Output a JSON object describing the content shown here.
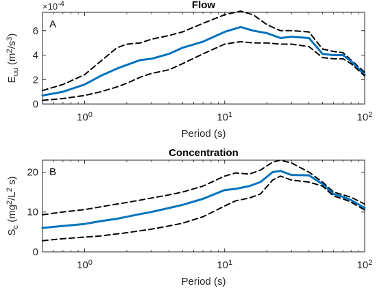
{
  "chart_data": [
    {
      "type": "line",
      "title": "Flow",
      "panel_label": "A",
      "xlabel": "Period (s)",
      "ylabel": "E_uu (m^2/s^3)",
      "y_multiplier": "×10^-4",
      "x_scale": "log",
      "xlim": [
        0.5,
        100
      ],
      "ylim": [
        0,
        7.5
      ],
      "x_ticks": [
        1,
        10,
        100
      ],
      "x_tick_labels": [
        "10^0",
        "10^1",
        "10^2"
      ],
      "y_ticks": [
        0,
        2,
        4,
        6
      ],
      "y_tick_labels": [
        "0",
        "2",
        "4",
        "6"
      ],
      "grid": false,
      "series": [
        {
          "style": "dashed",
          "color": "#000000",
          "x": [
            0.5,
            0.7,
            1.0,
            1.3,
            1.7,
            2.0,
            2.5,
            3.0,
            4.0,
            5.0,
            7.0,
            10.0,
            13.0,
            16.0,
            20.0,
            25.0,
            30.0,
            40.0,
            50.0,
            60.0,
            70.0,
            80.0,
            100.0
          ],
          "values": [
            1.1,
            1.6,
            2.4,
            3.5,
            4.6,
            4.9,
            5.0,
            5.3,
            5.6,
            5.9,
            6.6,
            7.3,
            7.6,
            7.3,
            6.5,
            6.0,
            6.0,
            5.9,
            4.5,
            4.3,
            4.2,
            3.6,
            2.6
          ]
        },
        {
          "style": "solid",
          "color": "#0072BD",
          "x": [
            0.5,
            0.7,
            1.0,
            1.3,
            1.7,
            2.0,
            2.5,
            3.0,
            4.0,
            5.0,
            7.0,
            10.0,
            13.0,
            16.0,
            20.0,
            25.0,
            30.0,
            40.0,
            50.0,
            60.0,
            70.0,
            80.0,
            100.0
          ],
          "values": [
            0.7,
            1.0,
            1.6,
            2.3,
            2.9,
            3.2,
            3.6,
            3.7,
            4.1,
            4.6,
            5.1,
            5.9,
            6.3,
            6.0,
            5.8,
            5.4,
            5.5,
            5.4,
            4.1,
            4.0,
            4.0,
            3.5,
            2.4
          ]
        },
        {
          "style": "dashed",
          "color": "#000000",
          "x": [
            0.5,
            0.7,
            1.0,
            1.3,
            1.7,
            2.0,
            2.5,
            3.0,
            4.0,
            5.0,
            7.0,
            10.0,
            13.0,
            16.0,
            20.0,
            25.0,
            30.0,
            40.0,
            50.0,
            60.0,
            70.0,
            80.0,
            100.0
          ],
          "values": [
            0.3,
            0.45,
            0.7,
            1.0,
            1.4,
            1.7,
            2.2,
            2.5,
            2.8,
            3.3,
            4.1,
            4.9,
            5.1,
            5.0,
            5.0,
            4.9,
            4.9,
            4.7,
            3.8,
            3.7,
            3.7,
            3.3,
            2.3
          ]
        }
      ]
    },
    {
      "type": "line",
      "title": "Concentration",
      "panel_label": "B",
      "xlabel": "Period (s)",
      "ylabel": "S_c (mg^2/L^2 s)",
      "x_scale": "log",
      "xlim": [
        0.5,
        100
      ],
      "ylim": [
        0,
        23
      ],
      "x_ticks": [
        1,
        10,
        100
      ],
      "x_tick_labels": [
        "10^0",
        "10^1",
        "10^2"
      ],
      "y_ticks": [
        0,
        10,
        20
      ],
      "y_tick_labels": [
        "0",
        "10",
        "20"
      ],
      "grid": false,
      "series": [
        {
          "style": "dashed",
          "color": "#000000",
          "x": [
            0.5,
            0.7,
            1.0,
            1.3,
            1.7,
            2.0,
            2.5,
            3.0,
            4.0,
            5.0,
            7.0,
            10.0,
            12.0,
            15.0,
            18.0,
            22.0,
            25.0,
            30.0,
            40.0,
            50.0,
            60.0,
            70.0,
            80.0,
            100.0
          ],
          "values": [
            9.3,
            10.0,
            10.6,
            11.3,
            12.0,
            12.4,
            13.0,
            13.5,
            14.3,
            15.0,
            16.5,
            19.0,
            19.8,
            19.5,
            20.5,
            22.5,
            23.0,
            22.3,
            20.0,
            17.5,
            15.0,
            14.3,
            13.7,
            12.0
          ]
        },
        {
          "style": "solid",
          "color": "#0072BD",
          "x": [
            0.5,
            0.7,
            1.0,
            1.3,
            1.7,
            2.0,
            2.5,
            3.0,
            4.0,
            5.0,
            7.0,
            10.0,
            12.0,
            15.0,
            18.0,
            22.0,
            25.0,
            30.0,
            40.0,
            50.0,
            60.0,
            70.0,
            80.0,
            100.0
          ],
          "values": [
            6.0,
            6.5,
            7.0,
            7.7,
            8.3,
            8.8,
            9.5,
            10.0,
            11.0,
            11.8,
            13.3,
            15.5,
            15.8,
            16.5,
            17.5,
            20.0,
            20.3,
            19.3,
            19.2,
            17.0,
            14.5,
            13.8,
            13.0,
            11.0
          ]
        },
        {
          "style": "dashed",
          "color": "#000000",
          "x": [
            0.5,
            0.7,
            1.0,
            1.3,
            1.7,
            2.0,
            2.5,
            3.0,
            4.0,
            5.0,
            7.0,
            10.0,
            12.0,
            15.0,
            18.0,
            22.0,
            25.0,
            30.0,
            40.0,
            50.0,
            60.0,
            70.0,
            80.0,
            100.0
          ],
          "values": [
            2.8,
            3.3,
            3.7,
            4.0,
            4.5,
            4.8,
            5.3,
            5.7,
            6.5,
            7.2,
            8.8,
            11.5,
            12.8,
            13.5,
            14.5,
            18.0,
            19.0,
            18.0,
            17.5,
            16.5,
            14.0,
            13.3,
            12.5,
            10.5
          ]
        }
      ]
    }
  ]
}
